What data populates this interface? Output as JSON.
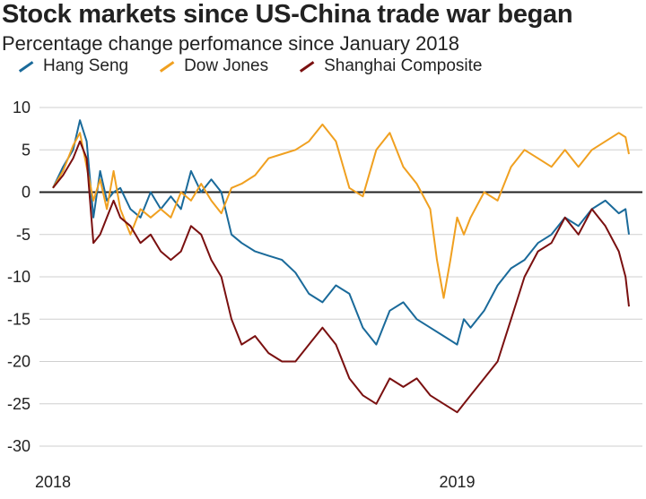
{
  "chart_data": {
    "type": "line",
    "title": "Stock markets since US-China trade war began",
    "subtitle": "Percentage change perfomance since January 2018",
    "xlabel": "",
    "ylabel": "",
    "ylim": [
      -30,
      10
    ],
    "yticks": [
      10,
      5,
      0,
      -5,
      -10,
      -15,
      -20,
      -25,
      -30
    ],
    "xticks": [
      {
        "label": "2018",
        "x": 0
      },
      {
        "label": "2019",
        "x": 12
      }
    ],
    "xlim": [
      -0.4,
      17.5
    ],
    "grid": "horizontal",
    "legend_position": "top",
    "series": [
      {
        "name": "Hang Seng",
        "color": "#1a6a9a",
        "x": [
          0,
          0.3,
          0.6,
          0.8,
          1.0,
          1.2,
          1.4,
          1.6,
          1.8,
          2.0,
          2.3,
          2.6,
          2.9,
          3.2,
          3.5,
          3.8,
          4.1,
          4.4,
          4.7,
          5.0,
          5.3,
          5.6,
          6.0,
          6.4,
          6.8,
          7.2,
          7.6,
          8.0,
          8.4,
          8.8,
          9.2,
          9.6,
          10.0,
          10.4,
          10.8,
          11.2,
          11.6,
          12.0,
          12.2,
          12.4,
          12.8,
          13.2,
          13.6,
          14.0,
          14.4,
          14.8,
          15.2,
          15.6,
          16.0,
          16.4,
          16.8,
          17.0,
          17.1
        ],
        "values": [
          0.5,
          3,
          5,
          8.5,
          6,
          -3,
          2.5,
          -1,
          0,
          0.5,
          -2,
          -3,
          0,
          -2,
          -0.5,
          -2,
          2.5,
          0,
          1.5,
          0,
          -5,
          -6,
          -7,
          -7.5,
          -8,
          -9.5,
          -12,
          -13,
          -11,
          -12,
          -16,
          -18,
          -14,
          -13,
          -15,
          -16,
          -17,
          -18,
          -15,
          -16,
          -14,
          -11,
          -9,
          -8,
          -6,
          -5,
          -3,
          -4,
          -2,
          -1,
          -2.5,
          -2,
          -5
        ]
      },
      {
        "name": "Dow Jones",
        "color": "#f0a020",
        "x": [
          0,
          0.3,
          0.6,
          0.8,
          1.0,
          1.2,
          1.4,
          1.6,
          1.8,
          2.0,
          2.3,
          2.6,
          2.9,
          3.2,
          3.5,
          3.8,
          4.1,
          4.4,
          4.7,
          5.0,
          5.3,
          5.6,
          6.0,
          6.4,
          6.8,
          7.2,
          7.6,
          8.0,
          8.4,
          8.8,
          9.2,
          9.6,
          10.0,
          10.4,
          10.8,
          11.2,
          11.4,
          11.6,
          11.8,
          12.0,
          12.2,
          12.4,
          12.8,
          13.2,
          13.6,
          14.0,
          14.4,
          14.8,
          15.2,
          15.6,
          16.0,
          16.4,
          16.8,
          17.0,
          17.1
        ],
        "values": [
          0.5,
          2.5,
          5.5,
          7,
          3,
          -1,
          1.5,
          -2,
          2.5,
          -2,
          -5,
          -2,
          -3,
          -2,
          -3,
          0,
          -1,
          1,
          -1,
          -2.5,
          0.5,
          1,
          2,
          4,
          4.5,
          5,
          6,
          8,
          6,
          0.5,
          -0.5,
          5,
          7,
          3,
          1,
          -2,
          -8,
          -12.5,
          -8,
          -3,
          -5,
          -3,
          0,
          -1,
          3,
          5,
          4,
          3,
          5,
          3,
          5,
          6,
          7,
          6.5,
          4.5
        ]
      },
      {
        "name": "Shanghai Composite",
        "color": "#7a1010",
        "x": [
          0,
          0.3,
          0.6,
          0.8,
          1.0,
          1.2,
          1.4,
          1.6,
          1.8,
          2.0,
          2.3,
          2.6,
          2.9,
          3.2,
          3.5,
          3.8,
          4.1,
          4.4,
          4.7,
          5.0,
          5.3,
          5.6,
          6.0,
          6.4,
          6.8,
          7.2,
          7.6,
          8.0,
          8.4,
          8.8,
          9.2,
          9.6,
          10.0,
          10.4,
          10.8,
          11.2,
          11.6,
          12.0,
          12.2,
          12.4,
          12.8,
          13.2,
          13.6,
          14.0,
          14.4,
          14.8,
          15.2,
          15.6,
          16.0,
          16.4,
          16.8,
          17.0,
          17.1
        ],
        "values": [
          0.5,
          2,
          4,
          6,
          4,
          -6,
          -5,
          -3,
          -1,
          -3,
          -4,
          -6,
          -5,
          -7,
          -8,
          -7,
          -4,
          -5,
          -8,
          -10,
          -15,
          -18,
          -17,
          -19,
          -20,
          -20,
          -18,
          -16,
          -18,
          -22,
          -24,
          -25,
          -22,
          -23,
          -22,
          -24,
          -25,
          -26,
          -25,
          -24,
          -22,
          -20,
          -15,
          -10,
          -7,
          -6,
          -3,
          -5,
          -2,
          -4,
          -7,
          -10,
          -13.5
        ]
      }
    ]
  }
}
